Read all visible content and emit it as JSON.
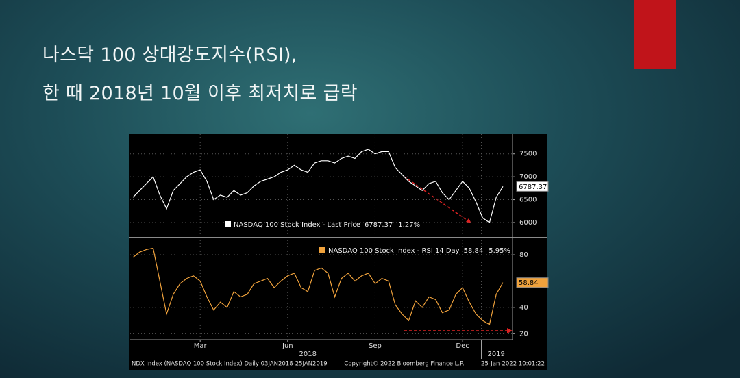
{
  "slide": {
    "title_lines": [
      "나스닥 100 상대강도지수(RSI),",
      "한 때 2018년 10월 이후 최저치로 급락"
    ]
  },
  "chart_data": [
    {
      "type": "line",
      "series": [
        {
          "name": "NASDAQ 100 Stock Index - Last Price",
          "color": "#ffffff",
          "values": [
            6550,
            6700,
            6850,
            7000,
            6600,
            6300,
            6700,
            6850,
            7000,
            7100,
            7150,
            6900,
            6500,
            6600,
            6550,
            6700,
            6600,
            6650,
            6800,
            6900,
            6950,
            7000,
            7100,
            7150,
            7250,
            7150,
            7100,
            7300,
            7350,
            7350,
            7300,
            7400,
            7450,
            7400,
            7550,
            7600,
            7500,
            7550,
            7550,
            7200,
            7050,
            6900,
            6800,
            6700,
            6850,
            6900,
            6650,
            6500,
            6700,
            6900,
            6750,
            6450,
            6100,
            6000,
            6550,
            6787.37
          ]
        }
      ],
      "legend_change": "1.27%",
      "ylim": [
        5700,
        7900
      ],
      "yticks": [
        6000,
        6500,
        7000,
        7500
      ],
      "grid": true
    },
    {
      "type": "line",
      "categories": [
        null,
        null,
        null,
        null,
        null,
        null,
        null,
        null,
        null,
        null,
        "Mar",
        null,
        null,
        null,
        null,
        null,
        null,
        null,
        null,
        null,
        null,
        null,
        null,
        "Jun",
        null,
        null,
        null,
        null,
        null,
        null,
        null,
        null,
        null,
        null,
        null,
        null,
        "Sep",
        null,
        null,
        null,
        null,
        null,
        null,
        null,
        null,
        null,
        null,
        null,
        null,
        "Dec",
        null,
        null,
        null,
        null,
        null,
        null
      ],
      "year_labels": [
        "2018",
        "2019"
      ],
      "series": [
        {
          "name": "NASDAQ 100 Stock Index - RSI 14 Day",
          "color": "#f0a23c",
          "values": [
            78,
            82,
            84,
            85,
            60,
            35,
            50,
            58,
            62,
            64,
            60,
            48,
            38,
            44,
            40,
            52,
            48,
            50,
            58,
            60,
            62,
            55,
            60,
            64,
            66,
            55,
            52,
            68,
            70,
            66,
            48,
            62,
            66,
            60,
            64,
            66,
            58,
            62,
            60,
            42,
            35,
            30,
            45,
            40,
            48,
            46,
            36,
            38,
            50,
            55,
            44,
            35,
            30,
            27,
            50,
            58.84
          ]
        }
      ],
      "legend_change": "5.95%",
      "ylim": [
        16,
        92
      ],
      "yticks": [
        20,
        40,
        60,
        80
      ],
      "grid": true
    }
  ],
  "footer": {
    "left": "NDX Index (NASDAQ 100 Stock Index)  Daily 03JAN2018-25JAN2019",
    "center": "Copyright© 2022 Bloomberg Finance L.P.",
    "right": "25-Jan-2022 10:01:22"
  }
}
